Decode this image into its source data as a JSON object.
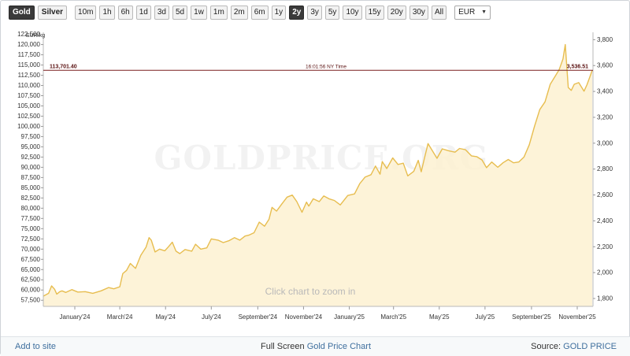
{
  "toolbar": {
    "metals": [
      {
        "label": "Gold",
        "active": true
      },
      {
        "label": "Silver",
        "active": false
      }
    ],
    "ranges": [
      {
        "label": "10m",
        "active": false
      },
      {
        "label": "1h",
        "active": false
      },
      {
        "label": "6h",
        "active": false
      },
      {
        "label": "1d",
        "active": false
      },
      {
        "label": "3d",
        "active": false
      },
      {
        "label": "5d",
        "active": false
      },
      {
        "label": "1w",
        "active": false
      },
      {
        "label": "1m",
        "active": false
      },
      {
        "label": "2m",
        "active": false
      },
      {
        "label": "6m",
        "active": false
      },
      {
        "label": "1y",
        "active": false
      },
      {
        "label": "2y",
        "active": true
      },
      {
        "label": "3y",
        "active": false
      },
      {
        "label": "5y",
        "active": false
      },
      {
        "label": "10y",
        "active": false
      },
      {
        "label": "15y",
        "active": false
      },
      {
        "label": "20y",
        "active": false
      },
      {
        "label": "30y",
        "active": false
      },
      {
        "label": "All",
        "active": false
      }
    ],
    "currency": "EUR"
  },
  "chart_data": {
    "type": "area",
    "watermark": "GOLDPRICE.ORG",
    "hint": "Click chart to zoom in",
    "ylabel_left": "EUR/kg",
    "ylim_left": [
      56000,
      123000
    ],
    "ylim_right": [
      1739,
      3857
    ],
    "yticks_left": [
      "57,500",
      "60,000",
      "62,500",
      "65,000",
      "67,500",
      "70,000",
      "72,500",
      "75,000",
      "77,500",
      "80,000",
      "82,500",
      "85,000",
      "87,500",
      "90,000",
      "92,500",
      "95,000",
      "97,500",
      "100,000",
      "102,500",
      "105,000",
      "107,500",
      "110,000",
      "112,500",
      "115,000",
      "117,500",
      "120,000",
      "122,500"
    ],
    "yticks_left_values": [
      57500,
      60000,
      62500,
      65000,
      67500,
      70000,
      72500,
      75000,
      77500,
      80000,
      82500,
      85000,
      87500,
      90000,
      92500,
      95000,
      97500,
      100000,
      102500,
      105000,
      107500,
      110000,
      112500,
      115000,
      117500,
      120000,
      122500
    ],
    "yticks_right": [
      "1,800",
      "2,000",
      "2,200",
      "2,400",
      "2,600",
      "2,800",
      "3,000",
      "3,200",
      "3,400",
      "3,600",
      "3,800"
    ],
    "yticks_right_values": [
      1800,
      2000,
      2200,
      2400,
      2600,
      2800,
      3000,
      3200,
      3400,
      3600,
      3800
    ],
    "xlim": [
      "2023-11-20",
      "2025-11-22"
    ],
    "xticks": [
      {
        "label": "January'24",
        "date": "2024-01-01"
      },
      {
        "label": "March'24",
        "date": "2024-03-01"
      },
      {
        "label": "May'24",
        "date": "2024-05-01"
      },
      {
        "label": "July'24",
        "date": "2024-07-01"
      },
      {
        "label": "September'24",
        "date": "2024-09-01"
      },
      {
        "label": "November'24",
        "date": "2024-11-01"
      },
      {
        "label": "January'25",
        "date": "2025-01-01"
      },
      {
        "label": "March'25",
        "date": "2025-03-01"
      },
      {
        "label": "May'25",
        "date": "2025-05-01"
      },
      {
        "label": "July'25",
        "date": "2025-07-01"
      },
      {
        "label": "September'25",
        "date": "2025-09-01"
      },
      {
        "label": "November'25",
        "date": "2025-11-01"
      }
    ],
    "current_line": {
      "value_left": "113,701.40",
      "value_right": "3,536.51",
      "time": "16:01:56 NY Time",
      "y": 113701.4
    },
    "series": [
      {
        "x": [
          "2023-11-20",
          "2023-11-27",
          "2023-12-01",
          "2023-12-05",
          "2023-12-08",
          "2023-12-12",
          "2023-12-15",
          "2023-12-20",
          "2023-12-28",
          "2024-01-05",
          "2024-01-15",
          "2024-01-25",
          "2024-02-05",
          "2024-02-15",
          "2024-02-22",
          "2024-03-01",
          "2024-03-05",
          "2024-03-10",
          "2024-03-15",
          "2024-03-22",
          "2024-03-29",
          "2024-04-05",
          "2024-04-09",
          "2024-04-12",
          "2024-04-17",
          "2024-04-23",
          "2024-04-30",
          "2024-05-05",
          "2024-05-10",
          "2024-05-15",
          "2024-05-20",
          "2024-05-27",
          "2024-06-05",
          "2024-06-10",
          "2024-06-17",
          "2024-06-25",
          "2024-07-01",
          "2024-07-10",
          "2024-07-17",
          "2024-07-25",
          "2024-08-01",
          "2024-08-08",
          "2024-08-15",
          "2024-08-20",
          "2024-08-27",
          "2024-09-03",
          "2024-09-10",
          "2024-09-16",
          "2024-09-20",
          "2024-09-26",
          "2024-10-03",
          "2024-10-10",
          "2024-10-17",
          "2024-10-23",
          "2024-10-30",
          "2024-11-05",
          "2024-11-08",
          "2024-11-14",
          "2024-11-22",
          "2024-11-28",
          "2024-12-05",
          "2024-12-12",
          "2024-12-20",
          "2024-12-30",
          "2025-01-08",
          "2025-01-15",
          "2025-01-22",
          "2025-01-30",
          "2025-02-05",
          "2025-02-11",
          "2025-02-14",
          "2025-02-20",
          "2025-02-28",
          "2025-03-07",
          "2025-03-14",
          "2025-03-20",
          "2025-03-28",
          "2025-04-03",
          "2025-04-07",
          "2025-04-11",
          "2025-04-16",
          "2025-04-22",
          "2025-04-28",
          "2025-05-05",
          "2025-05-14",
          "2025-05-22",
          "2025-05-28",
          "2025-06-05",
          "2025-06-13",
          "2025-06-20",
          "2025-06-27",
          "2025-07-03",
          "2025-07-10",
          "2025-07-18",
          "2025-07-25",
          "2025-08-01",
          "2025-08-08",
          "2025-08-15",
          "2025-08-22",
          "2025-08-29",
          "2025-09-05",
          "2025-09-12",
          "2025-09-19",
          "2025-09-26",
          "2025-10-03",
          "2025-10-08",
          "2025-10-13",
          "2025-10-16",
          "2025-10-20",
          "2025-10-24",
          "2025-10-28",
          "2025-11-03",
          "2025-11-10",
          "2025-11-14",
          "2025-11-18",
          "2025-11-21"
        ],
        "values": [
          58500,
          59200,
          61000,
          60200,
          59000,
          59600,
          59800,
          59400,
          60100,
          59500,
          59600,
          59200,
          59800,
          60600,
          60300,
          60800,
          64000,
          64800,
          66500,
          65300,
          68500,
          70500,
          72800,
          72200,
          69300,
          70000,
          69600,
          70600,
          71700,
          69500,
          68900,
          69900,
          69500,
          71200,
          70000,
          70300,
          72500,
          72200,
          71600,
          72100,
          72800,
          72200,
          73200,
          73400,
          74000,
          76600,
          75600,
          77300,
          80200,
          79300,
          81000,
          82700,
          83200,
          81600,
          79000,
          81500,
          80500,
          82300,
          81600,
          83000,
          82300,
          81900,
          80800,
          83100,
          83500,
          86000,
          87600,
          88200,
          90300,
          88300,
          91400,
          89700,
          92300,
          90700,
          91000,
          87900,
          89000,
          91700,
          88900,
          92000,
          95800,
          94000,
          92200,
          94500,
          94000,
          93700,
          94600,
          94300,
          92800,
          92600,
          91800,
          89900,
          91300,
          90000,
          91100,
          91900,
          91100,
          91300,
          92500,
          95500,
          100000,
          104100,
          106000,
          110300,
          112400,
          113900,
          116500,
          120000,
          109500,
          108800,
          110300,
          110700,
          108600,
          110200,
          112200,
          113701
        ]
      }
    ]
  },
  "footer": {
    "add_to_site": "Add to site",
    "full_screen": "Full Screen",
    "chart_link": "Gold Price Chart",
    "source_prefix": "Source:",
    "source_link": "GOLD PRICE"
  }
}
